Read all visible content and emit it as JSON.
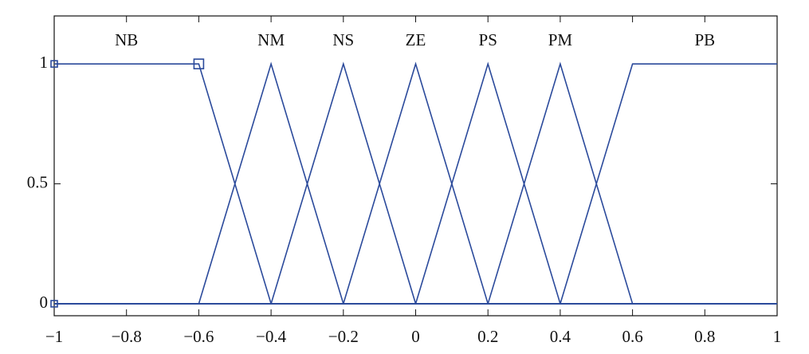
{
  "chart_data": {
    "type": "line",
    "color": "#2b4a9b",
    "xlim": [
      -1,
      1
    ],
    "xticks": [
      {
        "value": -1,
        "label": "−1"
      },
      {
        "value": -0.8,
        "label": "−0.8"
      },
      {
        "value": -0.6,
        "label": "−0.6"
      },
      {
        "value": -0.4,
        "label": "−0.4"
      },
      {
        "value": -0.2,
        "label": "−0.2"
      },
      0,
      0.2,
      0.4,
      0.6,
      0.8,
      1
    ],
    "ylim": [
      -0.05,
      1.2
    ],
    "yticks": [
      0,
      0.5,
      1
    ],
    "selected_points": {
      "x": [
        -1,
        -0.6,
        -1
      ],
      "y": [
        1,
        1,
        0
      ]
    },
    "series": [
      {
        "name": "NB",
        "x": [
          -1,
          -0.6,
          -0.4,
          1
        ],
        "values": [
          1,
          1,
          0,
          0
        ]
      },
      {
        "name": "NM",
        "x": [
          -1,
          -0.6,
          -0.4,
          -0.2,
          1
        ],
        "values": [
          0,
          0,
          1,
          0,
          0
        ]
      },
      {
        "name": "NS",
        "x": [
          -1,
          -0.4,
          -0.2,
          0,
          1
        ],
        "values": [
          0,
          0,
          1,
          0,
          0
        ]
      },
      {
        "name": "ZE",
        "x": [
          -1,
          -0.2,
          0,
          0.2,
          1
        ],
        "values": [
          0,
          0,
          1,
          0,
          0
        ]
      },
      {
        "name": "PS",
        "x": [
          -1,
          0,
          0.2,
          0.4,
          1
        ],
        "values": [
          0,
          0,
          1,
          0,
          0
        ]
      },
      {
        "name": "PM",
        "x": [
          -1,
          0.2,
          0.4,
          0.6,
          1
        ],
        "values": [
          0,
          0,
          1,
          0,
          0
        ]
      },
      {
        "name": "PB",
        "x": [
          -1,
          0.4,
          0.6,
          1
        ],
        "values": [
          0,
          0,
          1,
          1
        ]
      }
    ]
  }
}
